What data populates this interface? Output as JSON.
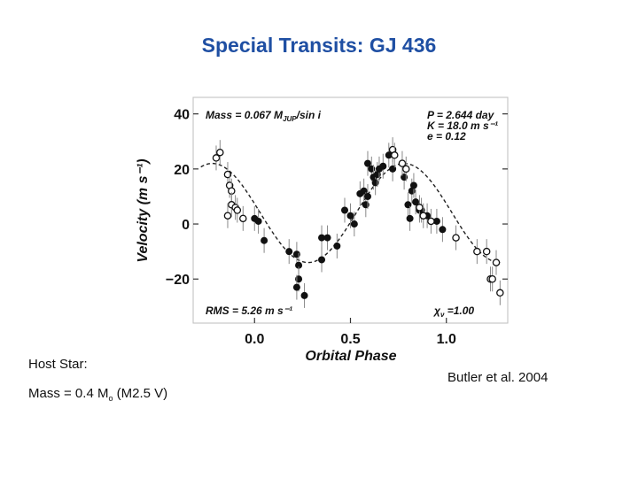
{
  "slide": {
    "title": "Special Transits: GJ 436",
    "host_label": "Host Star:",
    "host_mass_text": "Mass = 0.4 M",
    "host_mass_sub": "o",
    "host_mass_type": " (M2.5 V)",
    "citation": "Butler et al. 2004"
  },
  "chart_data": {
    "type": "scatter",
    "xlabel": "Orbital Phase",
    "ylabel": "Velocity  (m s⁻¹)",
    "xlim": [
      -0.32,
      1.32
    ],
    "ylim": [
      -36,
      46
    ],
    "x_ticks": [
      0.0,
      0.5,
      1.0
    ],
    "x_tick_labels": [
      "0.0",
      "0.5",
      "1.0"
    ],
    "y_ticks": [
      -20,
      0,
      20,
      40
    ],
    "y_tick_labels": [
      "−20",
      "0",
      "20",
      "40"
    ],
    "grid": false,
    "annotations": {
      "mass": "Mass = 0.067 M",
      "mass_sub": "JUP",
      "mass_tail": "/sin i",
      "period": "P = 2.644 day",
      "amplitude": "K = 18.0 m s⁻¹",
      "eccentricity": "e = 0.12",
      "rms": "RMS = 5.26 m s⁻¹",
      "chi": "χ",
      "chi_sub": "ν",
      "chi_tail": " =1.00"
    },
    "fit_curve": {
      "amplitude": 18.0,
      "offset": 4.0,
      "phase_of_max": 0.78,
      "style": "dashed"
    },
    "series": [
      {
        "marker": "filled",
        "points": [
          [
            0.0,
            2
          ],
          [
            0.02,
            1
          ],
          [
            0.05,
            -6
          ],
          [
            0.18,
            -10
          ],
          [
            0.22,
            -11
          ],
          [
            0.23,
            -15
          ],
          [
            0.23,
            -20
          ],
          [
            0.26,
            -26
          ],
          [
            0.22,
            -23
          ],
          [
            0.35,
            -13
          ],
          [
            0.35,
            -5
          ],
          [
            0.38,
            -5
          ],
          [
            0.43,
            -8
          ],
          [
            0.47,
            5
          ],
          [
            0.5,
            3
          ],
          [
            0.52,
            0
          ],
          [
            0.55,
            11
          ],
          [
            0.57,
            12
          ],
          [
            0.58,
            7
          ],
          [
            0.59,
            10
          ],
          [
            0.59,
            22
          ],
          [
            0.61,
            20
          ],
          [
            0.62,
            17
          ],
          [
            0.63,
            15
          ],
          [
            0.64,
            18
          ],
          [
            0.65,
            20
          ],
          [
            0.67,
            21
          ],
          [
            0.7,
            25
          ],
          [
            0.72,
            20
          ],
          [
            0.78,
            17
          ],
          [
            0.8,
            7
          ],
          [
            0.82,
            12
          ],
          [
            0.84,
            8
          ],
          [
            0.86,
            5
          ],
          [
            0.87,
            5
          ],
          [
            0.9,
            3
          ],
          [
            0.95,
            1
          ],
          [
            0.98,
            -2
          ],
          [
            0.81,
            2
          ],
          [
            0.83,
            14
          ]
        ]
      },
      {
        "marker": "open",
        "points": [
          [
            -0.2,
            24
          ],
          [
            -0.18,
            26
          ],
          [
            -0.14,
            18
          ],
          [
            -0.13,
            14
          ],
          [
            -0.12,
            12
          ],
          [
            -0.12,
            7
          ],
          [
            -0.14,
            3
          ],
          [
            -0.1,
            6
          ],
          [
            -0.09,
            5
          ],
          [
            -0.06,
            2
          ],
          [
            0.72,
            27
          ],
          [
            0.73,
            25
          ],
          [
            0.77,
            22
          ],
          [
            0.79,
            20
          ],
          [
            0.86,
            6
          ],
          [
            0.88,
            3
          ],
          [
            0.92,
            1
          ],
          [
            1.05,
            -5
          ],
          [
            1.16,
            -10
          ],
          [
            1.21,
            -10
          ],
          [
            1.23,
            -20
          ],
          [
            1.24,
            -20
          ],
          [
            1.26,
            -14
          ],
          [
            1.28,
            -25
          ]
        ]
      }
    ]
  }
}
